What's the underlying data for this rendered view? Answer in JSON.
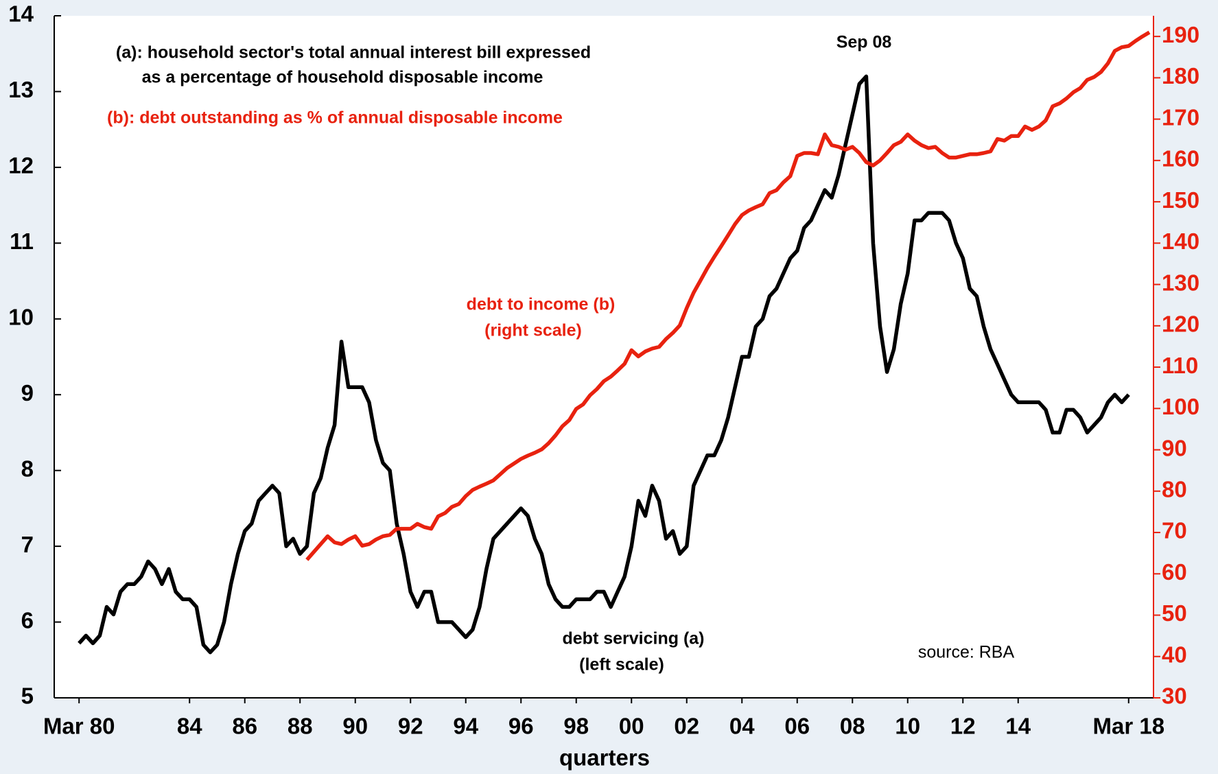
{
  "chart_data": {
    "type": "line",
    "x_label": "quarters",
    "x": [
      1980,
      1980.25,
      1980.5,
      1980.75,
      1981,
      1981.25,
      1981.5,
      1981.75,
      1982,
      1982.25,
      1982.5,
      1982.75,
      1983,
      1983.25,
      1983.5,
      1983.75,
      1984,
      1984.25,
      1984.5,
      1984.75,
      1985,
      1985.25,
      1985.5,
      1985.75,
      1986,
      1986.25,
      1986.5,
      1986.75,
      1987,
      1987.25,
      1987.5,
      1987.75,
      1988,
      1988.25,
      1988.5,
      1988.75,
      1989,
      1989.25,
      1989.5,
      1989.75,
      1990,
      1990.25,
      1990.5,
      1990.75,
      1991,
      1991.25,
      1991.5,
      1991.75,
      1992,
      1992.25,
      1992.5,
      1992.75,
      1993,
      1993.25,
      1993.5,
      1993.75,
      1994,
      1994.25,
      1994.5,
      1994.75,
      1995,
      1995.25,
      1995.5,
      1995.75,
      1996,
      1996.25,
      1996.5,
      1996.75,
      1997,
      1997.25,
      1997.5,
      1997.75,
      1998,
      1998.25,
      1998.5,
      1998.75,
      1999,
      1999.25,
      1999.5,
      1999.75,
      2000,
      2000.25,
      2000.5,
      2000.75,
      2001,
      2001.25,
      2001.5,
      2001.75,
      2002,
      2002.25,
      2002.5,
      2002.75,
      2003,
      2003.25,
      2003.5,
      2003.75,
      2004,
      2004.25,
      2004.5,
      2004.75,
      2005,
      2005.25,
      2005.5,
      2005.75,
      2006,
      2006.25,
      2006.5,
      2006.75,
      2007,
      2007.25,
      2007.5,
      2007.75,
      2008,
      2008.25,
      2008.5,
      2008.75,
      2009,
      2009.25,
      2009.5,
      2009.75,
      2010,
      2010.25,
      2010.5,
      2010.75,
      2011,
      2011.25,
      2011.5,
      2011.75,
      2012,
      2012.25,
      2012.5,
      2012.75,
      2013,
      2013.25,
      2013.5,
      2013.75,
      2014,
      2014.25,
      2014.5,
      2014.75,
      2015,
      2015.25,
      2015.5,
      2015.75,
      2016,
      2016.25,
      2016.5,
      2016.75,
      2017,
      2017.25,
      2017.5,
      2017.75,
      2018,
      2018.25,
      2018.5,
      2018.75
    ],
    "series": [
      {
        "name": "debt servicing (a)",
        "color": "#000000",
        "axis": "y",
        "values": [
          5.72,
          5.82,
          5.72,
          5.82,
          6.2,
          6.1,
          6.4,
          6.5,
          6.5,
          6.6,
          6.8,
          6.7,
          6.5,
          6.7,
          6.4,
          6.3,
          6.3,
          6.2,
          5.7,
          5.6,
          5.7,
          6.0,
          6.5,
          6.9,
          7.2,
          7.3,
          7.6,
          7.7,
          7.8,
          7.7,
          7.0,
          7.1,
          6.9,
          7.0,
          7.7,
          7.9,
          8.3,
          8.6,
          9.7,
          9.1,
          9.1,
          9.1,
          8.9,
          8.4,
          8.1,
          8.0,
          7.3,
          6.9,
          6.4,
          6.2,
          6.4,
          6.4,
          6.0,
          6.0,
          6.0,
          5.9,
          5.8,
          5.9,
          6.2,
          6.7,
          7.1,
          7.2,
          7.3,
          7.4,
          7.5,
          7.4,
          7.1,
          6.9,
          6.5,
          6.3,
          6.2,
          6.2,
          6.3,
          6.3,
          6.3,
          6.4,
          6.4,
          6.2,
          6.4,
          6.6,
          7.0,
          7.6,
          7.4,
          7.8,
          7.6,
          7.1,
          7.2,
          6.9,
          7.0,
          7.8,
          8.0,
          8.2,
          8.2,
          8.4,
          8.7,
          9.1,
          9.5,
          9.5,
          9.9,
          10.0,
          10.3,
          10.4,
          10.6,
          10.8,
          10.9,
          11.2,
          11.3,
          11.5,
          11.7,
          11.6,
          11.9,
          12.3,
          12.7,
          13.1,
          13.2,
          11.0,
          9.9,
          9.3,
          9.6,
          10.2,
          10.6,
          11.3,
          11.3,
          11.4,
          11.4,
          11.4,
          11.3,
          11.0,
          10.8,
          10.4,
          10.3,
          9.9,
          9.6,
          9.4,
          9.2,
          9.0,
          8.9,
          8.9,
          8.9,
          8.9,
          8.8,
          8.5,
          8.5,
          8.8,
          8.8,
          8.7,
          8.5,
          8.6,
          8.7,
          8.9,
          9.0,
          8.9,
          9.0,
          null,
          null,
          null
        ]
      },
      {
        "name": "debt to income (b)",
        "color": "#e8220f",
        "axis": "y2",
        "values": [
          null,
          null,
          null,
          null,
          null,
          null,
          null,
          null,
          null,
          null,
          null,
          null,
          null,
          null,
          null,
          null,
          null,
          null,
          null,
          null,
          null,
          null,
          null,
          null,
          null,
          null,
          null,
          null,
          null,
          null,
          null,
          null,
          null,
          63.4,
          65.3,
          67.2,
          69.1,
          67.6,
          67.2,
          68.3,
          69.1,
          66.8,
          67.2,
          68.3,
          69.1,
          69.4,
          70.9,
          70.9,
          70.9,
          72.1,
          71.3,
          70.9,
          73.9,
          74.7,
          76.2,
          76.9,
          78.8,
          80.3,
          81.1,
          81.8,
          82.6,
          84.1,
          85.6,
          86.7,
          87.8,
          88.6,
          89.3,
          90.1,
          91.6,
          93.5,
          95.7,
          97.2,
          99.9,
          101.0,
          103.2,
          104.7,
          106.6,
          107.7,
          109.2,
          110.8,
          114.1,
          112.6,
          113.8,
          114.5,
          114.9,
          116.8,
          118.3,
          120.1,
          124.3,
          128.0,
          131.0,
          134.0,
          136.7,
          139.3,
          141.9,
          144.6,
          146.8,
          147.9,
          148.7,
          149.4,
          152.1,
          152.8,
          154.7,
          156.2,
          161.1,
          161.8,
          161.8,
          161.5,
          166.3,
          163.7,
          163.3,
          162.6,
          163.3,
          161.8,
          159.6,
          158.8,
          160.0,
          161.8,
          163.7,
          164.5,
          166.3,
          164.8,
          163.7,
          163.0,
          163.3,
          161.8,
          160.7,
          160.7,
          161.1,
          161.5,
          161.5,
          161.8,
          162.2,
          165.2,
          164.8,
          165.9,
          165.9,
          168.2,
          167.4,
          168.2,
          169.7,
          173.1,
          173.8,
          175.0,
          176.5,
          177.5,
          179.5,
          180.2,
          181.4,
          183.5,
          186.5,
          187.4,
          187.7,
          188.9,
          190.0,
          191.0
        ]
      }
    ],
    "xlim": [
      1979.1,
      2018.9
    ],
    "xticks": [
      {
        "value": 1980,
        "label": "Mar 80"
      },
      {
        "value": 1984,
        "label": "84"
      },
      {
        "value": 1986,
        "label": "86"
      },
      {
        "value": 1988,
        "label": "88"
      },
      {
        "value": 1990,
        "label": "90"
      },
      {
        "value": 1992,
        "label": "92"
      },
      {
        "value": 1994,
        "label": "94"
      },
      {
        "value": 1996,
        "label": "96"
      },
      {
        "value": 1998,
        "label": "98"
      },
      {
        "value": 2000,
        "label": "00"
      },
      {
        "value": 2002,
        "label": "02"
      },
      {
        "value": 2004,
        "label": "04"
      },
      {
        "value": 2006,
        "label": "06"
      },
      {
        "value": 2008,
        "label": "08"
      },
      {
        "value": 2010,
        "label": "10"
      },
      {
        "value": 2012,
        "label": "12"
      },
      {
        "value": 2014,
        "label": "14"
      },
      {
        "value": 2018,
        "label": "Mar 18"
      }
    ],
    "ylim": [
      5,
      14
    ],
    "yticks": [
      5,
      6,
      7,
      8,
      9,
      10,
      11,
      12,
      13,
      14
    ],
    "y2lim": [
      30,
      195
    ],
    "y2ticks": [
      30,
      40,
      50,
      60,
      70,
      80,
      90,
      100,
      110,
      120,
      130,
      140,
      150,
      160,
      170,
      180,
      190
    ],
    "y2color": "#e8220f",
    "grid": false,
    "annotations": [
      "(a): household sector's total annual interest bill expressed",
      "as a percentage of household disposable income",
      "(b): debt outstanding as % of annual disposable income",
      "Sep 08",
      "(right scale)",
      "(left scale)",
      "source: RBA"
    ]
  }
}
